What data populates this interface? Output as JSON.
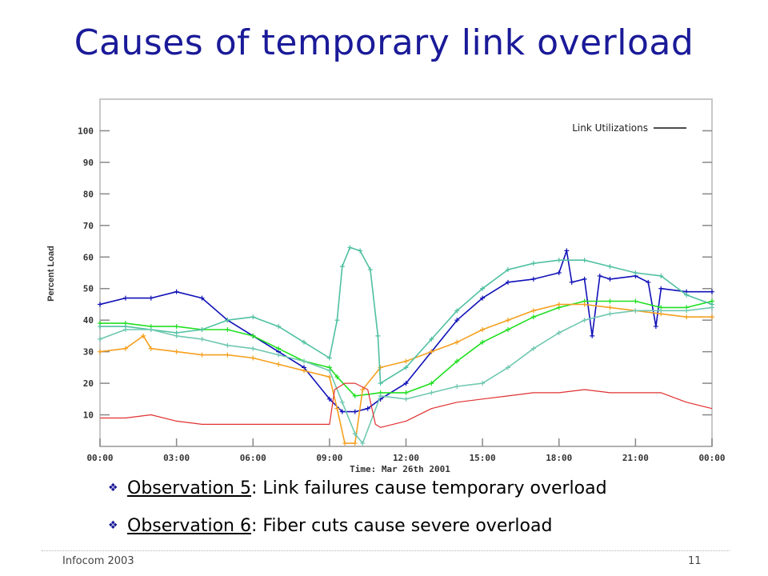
{
  "slide": {
    "title": "Causes of temporary link overload",
    "bullets": [
      {
        "term": "Observation 5",
        "text": ": Link failures cause temporary overload"
      },
      {
        "term": "Observation 6",
        "text": ": Fiber cuts cause severe overload"
      }
    ],
    "footer_left": "Infocom 2003",
    "footer_right": "11"
  },
  "colors": {
    "title": "#1a1a99",
    "series": [
      "#1010b8",
      "#20e020",
      "#f5a020",
      "#4fc0a0",
      "#70c8b0",
      "#e03030"
    ]
  },
  "chart_data": {
    "type": "line",
    "ylabel": "Percent Load",
    "xlabel": "Time: Mar 26th 2001",
    "legend": "Link Utilizations",
    "legend_position": "top-right",
    "grid": false,
    "xlim": [
      0,
      24
    ],
    "ylim": [
      0,
      110
    ],
    "x_ticks": [
      "00:00",
      "03:00",
      "06:00",
      "09:00",
      "12:00",
      "15:00",
      "18:00",
      "21:00",
      "00:00"
    ],
    "y_ticks": [
      10,
      20,
      30,
      40,
      50,
      60,
      70,
      80,
      90,
      100
    ],
    "series": [
      {
        "color": "#1010b8",
        "points": [
          [
            0,
            45
          ],
          [
            1,
            47
          ],
          [
            2,
            47
          ],
          [
            3,
            49
          ],
          [
            4,
            47
          ],
          [
            5,
            40
          ],
          [
            6,
            35
          ],
          [
            7,
            30
          ],
          [
            8,
            25
          ],
          [
            9,
            15
          ],
          [
            9.5,
            11
          ],
          [
            10,
            11
          ],
          [
            10.5,
            12
          ],
          [
            11,
            15
          ],
          [
            12,
            20
          ],
          [
            13,
            30
          ],
          [
            14,
            40
          ],
          [
            15,
            47
          ],
          [
            16,
            52
          ],
          [
            17,
            53
          ],
          [
            18,
            55
          ],
          [
            18.3,
            62
          ],
          [
            18.5,
            52
          ],
          [
            19,
            53
          ],
          [
            19.3,
            35
          ],
          [
            19.6,
            54
          ],
          [
            20,
            53
          ],
          [
            21,
            54
          ],
          [
            21.5,
            52
          ],
          [
            21.8,
            38
          ],
          [
            22,
            50
          ],
          [
            23,
            49
          ],
          [
            24,
            49
          ]
        ]
      },
      {
        "color": "#20e020",
        "points": [
          [
            0,
            39
          ],
          [
            1,
            39
          ],
          [
            2,
            38
          ],
          [
            3,
            38
          ],
          [
            4,
            37
          ],
          [
            5,
            37
          ],
          [
            6,
            35
          ],
          [
            7,
            31
          ],
          [
            8,
            27
          ],
          [
            9,
            25
          ],
          [
            9.3,
            22
          ],
          [
            10,
            16
          ],
          [
            11,
            17
          ],
          [
            12,
            17
          ],
          [
            13,
            20
          ],
          [
            14,
            27
          ],
          [
            15,
            33
          ],
          [
            16,
            37
          ],
          [
            17,
            41
          ],
          [
            18,
            44
          ],
          [
            19,
            46
          ],
          [
            20,
            46
          ],
          [
            21,
            46
          ],
          [
            22,
            44
          ],
          [
            23,
            44
          ],
          [
            24,
            46
          ]
        ]
      },
      {
        "color": "#f5a020",
        "points": [
          [
            0,
            30
          ],
          [
            1,
            31
          ],
          [
            1.7,
            35
          ],
          [
            2,
            31
          ],
          [
            3,
            30
          ],
          [
            4,
            29
          ],
          [
            5,
            29
          ],
          [
            6,
            28
          ],
          [
            7,
            26
          ],
          [
            8,
            24
          ],
          [
            9,
            22
          ],
          [
            9.3,
            12
          ],
          [
            9.6,
            1
          ],
          [
            10,
            1
          ],
          [
            10.3,
            18
          ],
          [
            11,
            25
          ],
          [
            12,
            27
          ],
          [
            13,
            30
          ],
          [
            14,
            33
          ],
          [
            15,
            37
          ],
          [
            16,
            40
          ],
          [
            17,
            43
          ],
          [
            18,
            45
          ],
          [
            19,
            45
          ],
          [
            20,
            44
          ],
          [
            21,
            43
          ],
          [
            22,
            42
          ],
          [
            23,
            41
          ],
          [
            24,
            41
          ]
        ]
      },
      {
        "color": "#4fc0a0",
        "points": [
          [
            0,
            38
          ],
          [
            1,
            38
          ],
          [
            2,
            37
          ],
          [
            3,
            36
          ],
          [
            4,
            37
          ],
          [
            5,
            40
          ],
          [
            6,
            41
          ],
          [
            7,
            38
          ],
          [
            8,
            33
          ],
          [
            9,
            28
          ],
          [
            9.3,
            40
          ],
          [
            9.5,
            57
          ],
          [
            9.8,
            63
          ],
          [
            10.2,
            62
          ],
          [
            10.6,
            56
          ],
          [
            10.9,
            35
          ],
          [
            11,
            20
          ],
          [
            12,
            25
          ],
          [
            13,
            34
          ],
          [
            14,
            43
          ],
          [
            15,
            50
          ],
          [
            16,
            56
          ],
          [
            17,
            58
          ],
          [
            18,
            59
          ],
          [
            19,
            59
          ],
          [
            20,
            57
          ],
          [
            21,
            55
          ],
          [
            22,
            54
          ],
          [
            23,
            48
          ],
          [
            24,
            45
          ]
        ]
      },
      {
        "color": "#70c8b0",
        "points": [
          [
            0,
            34
          ],
          [
            1,
            37
          ],
          [
            2,
            37
          ],
          [
            3,
            35
          ],
          [
            4,
            34
          ],
          [
            5,
            32
          ],
          [
            6,
            31
          ],
          [
            7,
            29
          ],
          [
            8,
            27
          ],
          [
            9,
            24
          ],
          [
            9.5,
            14
          ],
          [
            10,
            4
          ],
          [
            10.3,
            1
          ],
          [
            11,
            16
          ],
          [
            12,
            15
          ],
          [
            13,
            17
          ],
          [
            14,
            19
          ],
          [
            15,
            20
          ],
          [
            16,
            25
          ],
          [
            17,
            31
          ],
          [
            18,
            36
          ],
          [
            19,
            40
          ],
          [
            20,
            42
          ],
          [
            21,
            43
          ],
          [
            22,
            43
          ],
          [
            23,
            43
          ],
          [
            24,
            44
          ]
        ]
      },
      {
        "color": "#e03030",
        "points": [
          [
            0,
            9
          ],
          [
            1,
            9
          ],
          [
            2,
            10
          ],
          [
            3,
            8
          ],
          [
            4,
            7
          ],
          [
            5,
            7
          ],
          [
            6,
            7
          ],
          [
            7,
            7
          ],
          [
            8,
            7
          ],
          [
            9,
            7
          ],
          [
            9.2,
            18
          ],
          [
            9.6,
            20
          ],
          [
            10,
            20
          ],
          [
            10.5,
            18
          ],
          [
            10.8,
            7
          ],
          [
            11,
            6
          ],
          [
            12,
            8
          ],
          [
            13,
            12
          ],
          [
            14,
            14
          ],
          [
            15,
            15
          ],
          [
            16,
            16
          ],
          [
            17,
            17
          ],
          [
            18,
            17
          ],
          [
            19,
            18
          ],
          [
            20,
            17
          ],
          [
            21,
            17
          ],
          [
            22,
            17
          ],
          [
            23,
            14
          ],
          [
            24,
            12
          ]
        ]
      }
    ]
  }
}
